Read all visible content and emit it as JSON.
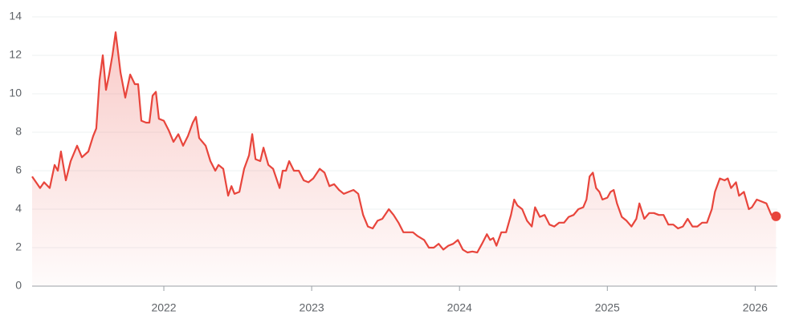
{
  "chart_data": {
    "type": "line",
    "x": [
      2021.109,
      2021.163,
      2021.19,
      2021.228,
      2021.261,
      2021.283,
      2021.304,
      2021.337,
      2021.37,
      2021.413,
      2021.446,
      2021.489,
      2021.522,
      2021.543,
      2021.565,
      2021.587,
      2021.609,
      2021.63,
      2021.652,
      2021.674,
      2021.707,
      2021.739,
      2021.772,
      2021.804,
      2021.826,
      2021.848,
      2021.88,
      2021.902,
      2021.924,
      2021.946,
      2021.967,
      2022.0,
      2022.033,
      2022.065,
      2022.098,
      2022.13,
      2022.163,
      2022.196,
      2022.217,
      2022.239,
      2022.283,
      2022.315,
      2022.348,
      2022.37,
      2022.402,
      2022.435,
      2022.457,
      2022.478,
      2022.511,
      2022.543,
      2022.576,
      2022.598,
      2022.62,
      2022.652,
      2022.674,
      2022.707,
      2022.739,
      2022.783,
      2022.804,
      2022.826,
      2022.848,
      2022.88,
      2022.913,
      2022.946,
      2022.978,
      2023.011,
      2023.054,
      2023.087,
      2023.12,
      2023.152,
      2023.185,
      2023.217,
      2023.25,
      2023.283,
      2023.315,
      2023.348,
      2023.38,
      2023.413,
      2023.446,
      2023.478,
      2023.522,
      2023.554,
      2023.587,
      2023.62,
      2023.652,
      2023.685,
      2023.717,
      2023.761,
      2023.793,
      2023.826,
      2023.859,
      2023.891,
      2023.924,
      2023.957,
      2023.989,
      2024.022,
      2024.054,
      2024.087,
      2024.12,
      2024.152,
      2024.185,
      2024.207,
      2024.228,
      2024.25,
      2024.283,
      2024.315,
      2024.348,
      2024.37,
      2024.391,
      2024.424,
      2024.457,
      2024.489,
      2024.511,
      2024.543,
      2024.576,
      2024.609,
      2024.641,
      2024.674,
      2024.707,
      2024.739,
      2024.772,
      2024.804,
      2024.837,
      2024.859,
      2024.88,
      2024.902,
      2024.924,
      2024.946,
      2024.967,
      2025.0,
      2025.022,
      2025.043,
      2025.065,
      2025.098,
      2025.13,
      2025.163,
      2025.196,
      2025.217,
      2025.25,
      2025.283,
      2025.315,
      2025.348,
      2025.38,
      2025.413,
      2025.446,
      2025.478,
      2025.511,
      2025.543,
      2025.576,
      2025.609,
      2025.641,
      2025.674,
      2025.707,
      2025.728,
      2025.761,
      2025.793,
      2025.815,
      2025.837,
      2025.87,
      2025.891,
      2025.924,
      2025.957,
      2025.978,
      2026.011,
      2026.043,
      2026.076,
      2026.109,
      2026.141
    ],
    "series": [
      {
        "color": "#e8453c",
        "values": [
          5.7,
          5.1,
          5.4,
          5.1,
          6.3,
          6.0,
          7.0,
          5.5,
          6.5,
          7.3,
          6.7,
          7.0,
          7.8,
          8.2,
          10.7,
          12.0,
          10.2,
          11.0,
          12.0,
          13.2,
          11.1,
          9.8,
          11.0,
          10.5,
          10.5,
          8.6,
          8.5,
          8.5,
          9.9,
          10.1,
          8.7,
          8.6,
          8.1,
          7.5,
          7.9,
          7.3,
          7.8,
          8.5,
          8.8,
          7.7,
          7.3,
          6.5,
          6.0,
          6.3,
          6.1,
          4.7,
          5.2,
          4.8,
          4.9,
          6.1,
          6.8,
          7.9,
          6.6,
          6.5,
          7.2,
          6.3,
          6.1,
          5.1,
          6.0,
          6.0,
          6.5,
          6.0,
          6.0,
          5.5,
          5.4,
          5.6,
          6.1,
          5.9,
          5.2,
          5.3,
          5.0,
          4.8,
          4.9,
          5.0,
          4.8,
          3.7,
          3.1,
          3.0,
          3.4,
          3.5,
          4.0,
          3.7,
          3.3,
          2.8,
          2.8,
          2.8,
          2.6,
          2.4,
          2.0,
          2.0,
          2.2,
          1.9,
          2.1,
          2.2,
          2.4,
          1.9,
          1.75,
          1.8,
          1.75,
          2.2,
          2.7,
          2.4,
          2.5,
          2.1,
          2.8,
          2.8,
          3.7,
          4.5,
          4.2,
          4.0,
          3.4,
          3.1,
          4.1,
          3.6,
          3.7,
          3.2,
          3.1,
          3.3,
          3.3,
          3.6,
          3.7,
          4.0,
          4.1,
          4.5,
          5.7,
          5.9,
          5.1,
          4.9,
          4.5,
          4.6,
          4.9,
          5.0,
          4.3,
          3.6,
          3.4,
          3.1,
          3.5,
          4.3,
          3.5,
          3.8,
          3.8,
          3.7,
          3.7,
          3.2,
          3.2,
          3.0,
          3.1,
          3.5,
          3.1,
          3.1,
          3.3,
          3.3,
          4.0,
          4.9,
          5.6,
          5.5,
          5.6,
          5.1,
          5.4,
          4.7,
          4.9,
          4.0,
          4.1,
          4.5,
          4.4,
          4.3,
          3.7,
          3.63
        ]
      }
    ],
    "xlim": [
      2021.109,
      2026.15
    ],
    "xticks": [
      2022,
      2023,
      2024,
      2025,
      2026
    ],
    "ylim": [
      0,
      14
    ],
    "yticks": [
      0,
      2,
      4,
      6,
      8,
      10,
      12,
      14
    ],
    "grid": true
  }
}
